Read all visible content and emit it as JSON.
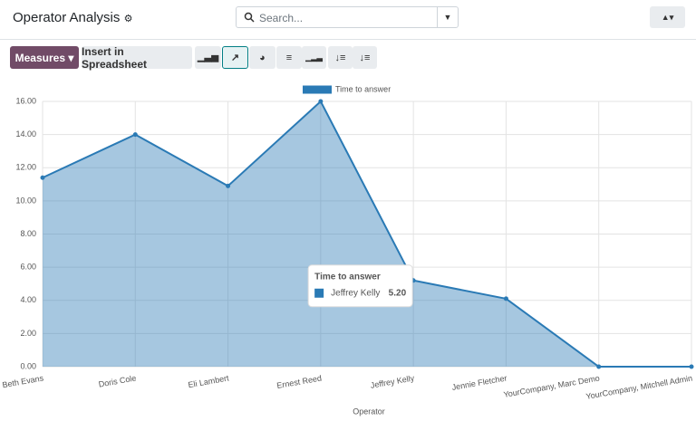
{
  "header": {
    "title": "Operator Analysis",
    "search_placeholder": "Search..."
  },
  "toolbar": {
    "measures": "Measures",
    "insert": "Insert in Spreadsheet"
  },
  "chart_data": {
    "type": "line",
    "area": true,
    "x_label": "Operator",
    "categories": [
      "Beth Evans",
      "Doris Cole",
      "Eli Lambert",
      "Ernest Reed",
      "Jeffrey Kelly",
      "Jennie Fletcher",
      "YourCompany, Marc Demo",
      "YourCompany, Mitchell Admin"
    ],
    "series": [
      {
        "name": "Time to answer",
        "color": "#2a7ab5",
        "values": [
          11.4,
          14.0,
          10.9,
          16.0,
          5.2,
          4.1,
          0,
          0
        ],
        "value_labels": [
          null,
          null,
          null,
          null,
          "5.20",
          null,
          null,
          null
        ]
      }
    ],
    "ylim": [
      0,
      16
    ],
    "yticks": [
      {
        "value": 0,
        "label": "0.00"
      },
      {
        "value": 2,
        "label": "2.00"
      },
      {
        "value": 4,
        "label": "4.00"
      },
      {
        "value": 6,
        "label": "6.00"
      },
      {
        "value": 8,
        "label": "8.00"
      },
      {
        "value": 10,
        "label": "10.00"
      },
      {
        "value": 12,
        "label": "12.00"
      },
      {
        "value": 14,
        "label": "14.00"
      },
      {
        "value": 16,
        "label": "16.00"
      }
    ],
    "grid": true,
    "legend": "top"
  }
}
